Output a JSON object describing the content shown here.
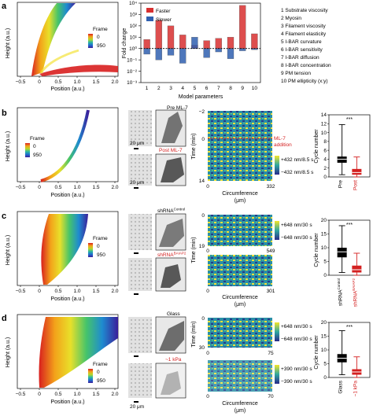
{
  "panels": {
    "a": {
      "letter": "a",
      "sim": {
        "ylabel": "Height (a.u.)",
        "xlabel": "Position (a.u.)",
        "xticks": [
          "−0.5",
          "0",
          "0.5",
          "1.0",
          "1.5",
          "2.0"
        ],
        "frame_title": "Frame",
        "frame_ticks": [
          "0",
          "950"
        ]
      },
      "bar": {
        "legend_faster": "Faster",
        "legend_slower": "Slower",
        "ylabel": "Fold change",
        "xlabel": "Model parameters",
        "yticks": [
          "10⁴",
          "10³",
          "10²",
          "10¹",
          "10⁰",
          "10⁻¹",
          "10⁻²",
          "10⁻³"
        ],
        "xticks": [
          "1",
          "2",
          "3",
          "4",
          "5",
          "6",
          "7",
          "8",
          "9",
          "10"
        ]
      },
      "params": [
        "1  Substrate viscosity",
        "2  Myosin",
        "3  Filament viscosity",
        "4  Filament elasticity",
        "5  I-BAR curvature",
        "6  I-BAR sensitivity",
        "7  I-BAR diffusion",
        "8  I-BAR concentration",
        "9  PM tension",
        "10  PM ellipticity (x:y)"
      ]
    },
    "b": {
      "letter": "b",
      "ylabel": "Height (a.u.)",
      "xlabel": "Position (a.u.)",
      "xticks": [
        "−0.5",
        "0",
        "0.5",
        "1.0",
        "1.5",
        "2.0"
      ],
      "frame_title": "Frame",
      "frame_ticks": [
        "0",
        "950"
      ],
      "img_top": "Pre ML-7",
      "img_bot": "Post ML-7",
      "scale": "20 μm",
      "kymo_ylabel": "Time (min)",
      "kymo_yticks": [
        "−2",
        "0",
        "14"
      ],
      "kymo_xticks": [
        "0",
        "332"
      ],
      "kymo_xlabel": "Circumference",
      "kymo_xunit": "(μm)",
      "annotation1": "ML-7",
      "annotation2": "addition",
      "cb_plus": "+432 nm/8.5 s",
      "cb_minus": "−432 nm/8.5 s",
      "box_ylabel": "Cycle number",
      "box_yticks": [
        "0",
        "2",
        "4",
        "6",
        "8",
        "10",
        "12",
        "14"
      ],
      "box_cats": [
        "Pre",
        "Post"
      ],
      "sig": "***"
    },
    "c": {
      "letter": "c",
      "ylabel": "Height (a.u.)",
      "xlabel": "Position (a.u.)",
      "xticks": [
        "−0.5",
        "0",
        "0.5",
        "1.0",
        "1.5",
        "2.0"
      ],
      "frame_title": "Frame",
      "frame_ticks": [
        "0",
        "950"
      ],
      "img_top_base": "shRNA",
      "img_top_sup": "Control",
      "img_bot_base": "shRNA",
      "img_bot_sup": "BAIAP2",
      "kymo_ylabel": "Time (min)",
      "kymo_yticks": [
        "0",
        "19"
      ],
      "kymo1_xticks": [
        "0",
        "549"
      ],
      "kymo2_xticks": [
        "0",
        "301"
      ],
      "kymo_xlabel": "Circumference",
      "kymo_xunit": "(μm)",
      "cb_plus": "+648 nm/30 s",
      "cb_minus": "−648 nm/30 s",
      "box_ylabel": "Cycle number",
      "box_yticks": [
        "0",
        "5",
        "10",
        "15",
        "20"
      ],
      "box_cats_base": [
        "shRNA",
        "shRNA"
      ],
      "box_cats_sup": [
        "Control",
        "BAIAP2"
      ],
      "sig": "***"
    },
    "d": {
      "letter": "d",
      "ylabel": "Height (a.u.)",
      "xlabel": "Position (a.u.)",
      "xticks": [
        "−0.5",
        "0",
        "0.5",
        "1.0",
        "1.5",
        "2.0"
      ],
      "frame_title": "Frame",
      "frame_ticks": [
        "0",
        "950"
      ],
      "img_top": "Glass",
      "img_bot": "~1 kPa",
      "scale": "20 μm",
      "kymo_ylabel": "Time (min)",
      "kymo_yticks": [
        "0",
        "30"
      ],
      "kymo1_xticks": [
        "0",
        "75"
      ],
      "kymo2_xticks": [
        "0",
        "70"
      ],
      "kymo_xlabel": "Circumference",
      "kymo_xunit": "(μm)",
      "cb1_plus": "+648 nm/30 s",
      "cb1_minus": "−648 nm/30 s",
      "cb2_plus": "+390 nm/30 s",
      "cb2_minus": "−390 nm/30 s",
      "box_ylabel": "Cycle number",
      "box_yticks": [
        "0",
        "5",
        "10",
        "15",
        "20"
      ],
      "box_cats": [
        "Glass",
        "~1 kPa"
      ],
      "sig": "***"
    }
  },
  "colors": {
    "red": "#d42020",
    "blue": "#2a5fb0",
    "faster": "#d83030",
    "slower": "#3060b0"
  },
  "chart_data": [
    {
      "type": "bar",
      "categories": [
        "1",
        "2",
        "3",
        "4",
        "5",
        "6",
        "7",
        "8",
        "9",
        "10"
      ],
      "series": [
        {
          "name": "Faster",
          "values": [
            0.8,
            2.5,
            2.0,
            1.2,
            0.3,
            0.7,
            0.9,
            1.0,
            3.8,
            1.3
          ]
        },
        {
          "name": "Slower",
          "values": [
            -0.5,
            -1.0,
            -0.6,
            -1.3,
            1.0,
            -0.8,
            -0.3,
            -0.9,
            -0.2,
            -0.1
          ]
        }
      ],
      "ylabel": "Fold change",
      "xlabel": "Model parameters",
      "yscale": "log",
      "ylim": [
        -3,
        4
      ]
    },
    {
      "type": "box",
      "categories": [
        "Pre",
        "Post"
      ],
      "ylabel": "Cycle number",
      "ylim": [
        0,
        14
      ],
      "boxes": [
        {
          "min": 0.5,
          "q1": 3.2,
          "median": 4.0,
          "q3": 4.6,
          "max": 11.8
        },
        {
          "min": 0.0,
          "q1": 0.5,
          "median": 1.0,
          "q3": 1.8,
          "max": 4.5
        }
      ]
    },
    {
      "type": "box",
      "categories": [
        "shRNA Control",
        "shRNA BAIAP2"
      ],
      "ylabel": "Cycle number",
      "ylim": [
        0,
        20
      ],
      "boxes": [
        {
          "min": 1.0,
          "q1": 6.5,
          "median": 8.5,
          "q3": 10.0,
          "max": 18.0
        },
        {
          "min": 0.0,
          "q1": 1.0,
          "median": 2.0,
          "q3": 3.5,
          "max": 8.0
        }
      ]
    },
    {
      "type": "box",
      "categories": [
        "Glass",
        "~1 kPa"
      ],
      "ylabel": "Cycle number",
      "ylim": [
        0,
        20
      ],
      "boxes": [
        {
          "min": 1.0,
          "q1": 5.5,
          "median": 7.0,
          "q3": 8.5,
          "max": 17.0
        },
        {
          "min": 0.0,
          "q1": 1.0,
          "median": 2.0,
          "q3": 3.0,
          "max": 7.5
        }
      ]
    }
  ]
}
